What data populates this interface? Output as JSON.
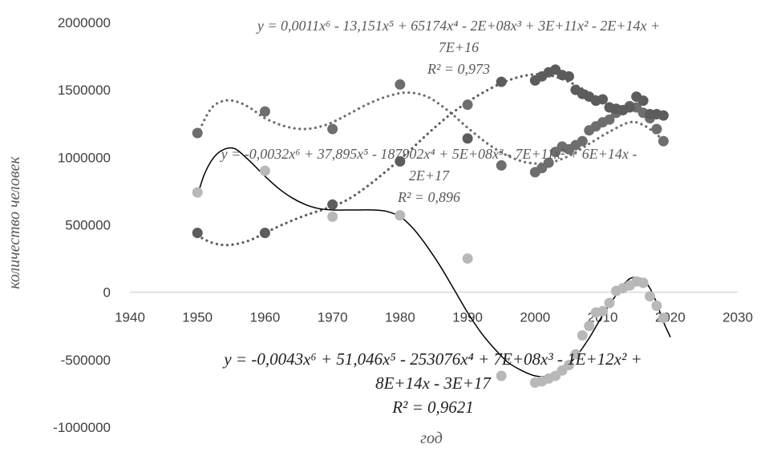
{
  "chart_data": {
    "type": "scatter",
    "xlabel": "год",
    "ylabel": "количество человек",
    "xlim": [
      1940,
      2030
    ],
    "ylim": [
      -1000000,
      2000000
    ],
    "x_ticks": [
      "1940",
      "1950",
      "1960",
      "1970",
      "1980",
      "1990",
      "2000",
      "2010",
      "2020",
      "2030"
    ],
    "y_ticks": [
      "2000000",
      "1500000",
      "1000000",
      "500000",
      "0",
      "-500000",
      "-1000000"
    ],
    "grid": false,
    "legend": "none",
    "colors": {
      "series_a": "#6e6e6e",
      "series_b": "#5c5c5c",
      "series_c": "#b8b8b8",
      "axis": "#d9d9d9",
      "trend_solid": "#000000"
    },
    "series": [
      {
        "values": [
          [
            1950,
            1180000
          ],
          [
            1960,
            1340000
          ],
          [
            1970,
            1210000
          ],
          [
            1980,
            1540000
          ],
          [
            1990,
            1390000
          ],
          [
            1995,
            940000
          ],
          [
            2000,
            890000
          ],
          [
            2001,
            920000
          ],
          [
            2002,
            960000
          ],
          [
            2003,
            1040000
          ],
          [
            2004,
            1080000
          ],
          [
            2005,
            1060000
          ],
          [
            2006,
            1090000
          ],
          [
            2007,
            1120000
          ],
          [
            2008,
            1200000
          ],
          [
            2009,
            1230000
          ],
          [
            2010,
            1260000
          ],
          [
            2011,
            1280000
          ],
          [
            2012,
            1330000
          ],
          [
            2013,
            1350000
          ],
          [
            2014,
            1380000
          ],
          [
            2015,
            1370000
          ],
          [
            2016,
            1330000
          ],
          [
            2017,
            1290000
          ],
          [
            2018,
            1210000
          ],
          [
            2019,
            1120000
          ]
        ],
        "trendline": {
          "style": "dotted",
          "equation": [
            "y = 0,0011x⁶ - 13,151x⁵ + 65174x⁴ - 2E+08x³ + 3E+11x² - 2E+14x +",
            "7E+16"
          ],
          "r2": "R² = 0,973",
          "values": [
            [
              1950,
              1170000
            ],
            [
              1952,
              1360000
            ],
            [
              1954,
              1420000
            ],
            [
              1956,
              1410000
            ],
            [
              1958,
              1360000
            ],
            [
              1960,
              1290000
            ],
            [
              1963,
              1230000
            ],
            [
              1966,
              1210000
            ],
            [
              1969,
              1240000
            ],
            [
              1972,
              1310000
            ],
            [
              1975,
              1390000
            ],
            [
              1978,
              1450000
            ],
            [
              1981,
              1480000
            ],
            [
              1984,
              1450000
            ],
            [
              1987,
              1350000
            ],
            [
              1990,
              1220000
            ],
            [
              1993,
              1100000
            ],
            [
              1996,
              1010000
            ],
            [
              1999,
              960000
            ],
            [
              2002,
              960000
            ],
            [
              2005,
              1010000
            ],
            [
              2008,
              1100000
            ],
            [
              2011,
              1190000
            ],
            [
              2014,
              1260000
            ],
            [
              2016,
              1240000
            ],
            [
              2018,
              1170000
            ],
            [
              2019,
              1120000
            ]
          ]
        }
      },
      {
        "values": [
          [
            1950,
            440000
          ],
          [
            1960,
            440000
          ],
          [
            1970,
            650000
          ],
          [
            1980,
            970000
          ],
          [
            1990,
            1140000
          ],
          [
            1995,
            1560000
          ],
          [
            2000,
            1570000
          ],
          [
            2001,
            1600000
          ],
          [
            2002,
            1630000
          ],
          [
            2003,
            1650000
          ],
          [
            2004,
            1610000
          ],
          [
            2005,
            1600000
          ],
          [
            2006,
            1500000
          ],
          [
            2007,
            1470000
          ],
          [
            2008,
            1450000
          ],
          [
            2009,
            1420000
          ],
          [
            2010,
            1430000
          ],
          [
            2011,
            1370000
          ],
          [
            2012,
            1360000
          ],
          [
            2013,
            1350000
          ],
          [
            2014,
            1370000
          ],
          [
            2015,
            1450000
          ],
          [
            2016,
            1420000
          ],
          [
            2017,
            1320000
          ],
          [
            2018,
            1320000
          ],
          [
            2019,
            1310000
          ]
        ],
        "trendline": {
          "style": "dotted",
          "equation": [
            "y = -0,0032x⁶ + 37,895x⁵ - 187902x⁴ + 5E+08x³ - 7E+11x² + 6E+14x -",
            "2E+17"
          ],
          "r2": "R² = 0,896",
          "values": [
            [
              1950,
              420000
            ],
            [
              1952,
              370000
            ],
            [
              1954,
              350000
            ],
            [
              1956,
              360000
            ],
            [
              1958,
              390000
            ],
            [
              1960,
              440000
            ],
            [
              1963,
              510000
            ],
            [
              1966,
              570000
            ],
            [
              1969,
              620000
            ],
            [
              1972,
              680000
            ],
            [
              1975,
              780000
            ],
            [
              1978,
              900000
            ],
            [
              1981,
              1030000
            ],
            [
              1984,
              1170000
            ],
            [
              1987,
              1300000
            ],
            [
              1990,
              1410000
            ],
            [
              1993,
              1500000
            ],
            [
              1996,
              1570000
            ],
            [
              1999,
              1610000
            ],
            [
              2002,
              1610000
            ],
            [
              2005,
              1560000
            ],
            [
              2008,
              1480000
            ],
            [
              2011,
              1400000
            ],
            [
              2014,
              1350000
            ],
            [
              2016,
              1340000
            ],
            [
              2018,
              1320000
            ],
            [
              2019,
              1300000
            ]
          ]
        }
      },
      {
        "values": [
          [
            1950,
            740000
          ],
          [
            1960,
            900000
          ],
          [
            1970,
            560000
          ],
          [
            1980,
            570000
          ],
          [
            1990,
            250000
          ],
          [
            1995,
            -620000
          ],
          [
            2000,
            -670000
          ],
          [
            2001,
            -660000
          ],
          [
            2002,
            -640000
          ],
          [
            2003,
            -620000
          ],
          [
            2004,
            -580000
          ],
          [
            2005,
            -540000
          ],
          [
            2006,
            -460000
          ],
          [
            2007,
            -320000
          ],
          [
            2008,
            -250000
          ],
          [
            2009,
            -150000
          ],
          [
            2010,
            -140000
          ],
          [
            2011,
            -80000
          ],
          [
            2012,
            10000
          ],
          [
            2013,
            30000
          ],
          [
            2014,
            50000
          ],
          [
            2015,
            80000
          ],
          [
            2016,
            70000
          ],
          [
            2017,
            -30000
          ],
          [
            2018,
            -100000
          ],
          [
            2019,
            -190000
          ]
        ],
        "trendline": {
          "style": "solid",
          "equation": [
            "y = -0,0043x⁶ + 51,046x⁵ - 253076x⁴ + 7E+08x³ - 1E+12x² +",
            "8E+14x - 3E+17"
          ],
          "r2": "R² = 0,9621",
          "values": [
            [
              1950,
              720000
            ],
            [
              1951,
              870000
            ],
            [
              1952,
              970000
            ],
            [
              1953,
              1030000
            ],
            [
              1954,
              1060000
            ],
            [
              1955,
              1070000
            ],
            [
              1956,
              1050000
            ],
            [
              1958,
              960000
            ],
            [
              1960,
              860000
            ],
            [
              1962,
              770000
            ],
            [
              1964,
              700000
            ],
            [
              1966,
              650000
            ],
            [
              1968,
              620000
            ],
            [
              1970,
              610000
            ],
            [
              1972,
              610000
            ],
            [
              1974,
              610000
            ],
            [
              1976,
              610000
            ],
            [
              1978,
              600000
            ],
            [
              1980,
              560000
            ],
            [
              1982,
              470000
            ],
            [
              1984,
              340000
            ],
            [
              1986,
              190000
            ],
            [
              1988,
              20000
            ],
            [
              1990,
              -150000
            ],
            [
              1992,
              -300000
            ],
            [
              1994,
              -420000
            ],
            [
              1996,
              -520000
            ],
            [
              1998,
              -580000
            ],
            [
              2000,
              -620000
            ],
            [
              2002,
              -620000
            ],
            [
              2004,
              -570000
            ],
            [
              2006,
              -480000
            ],
            [
              2008,
              -340000
            ],
            [
              2010,
              -170000
            ],
            [
              2012,
              -20000
            ],
            [
              2013,
              50000
            ],
            [
              2014,
              100000
            ],
            [
              2015,
              110000
            ],
            [
              2016,
              90000
            ],
            [
              2017,
              30000
            ],
            [
              2018,
              -80000
            ],
            [
              2019,
              -220000
            ],
            [
              2020,
              -330000
            ]
          ]
        }
      }
    ]
  }
}
